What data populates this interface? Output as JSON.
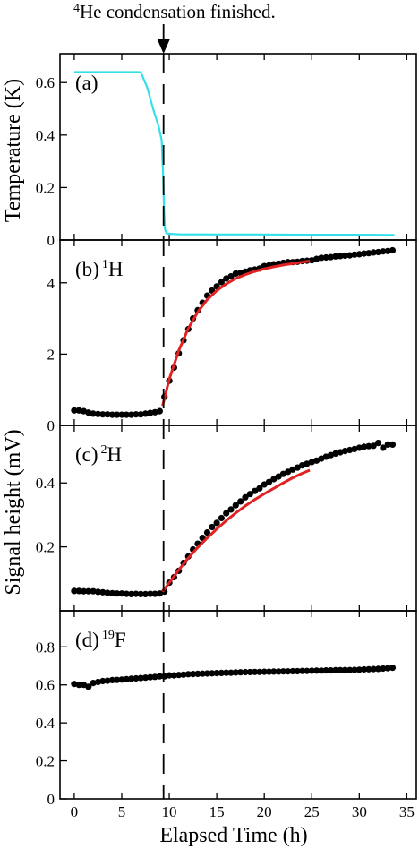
{
  "annotation": {
    "sup": "4",
    "text": "He condensation finished."
  },
  "xaxis": {
    "label": "Elapsed Time (h)",
    "ticks": [
      0,
      5,
      10,
      15,
      20,
      25,
      30,
      35
    ],
    "range": [
      -1.5,
      36
    ]
  },
  "ylabels": {
    "temperature": "Temperature (K)",
    "signal": "Signal height (mV)"
  },
  "colors": {
    "fit": "#e02222",
    "temperature": "#34e0e8",
    "points": "#000000"
  },
  "dashed_line_x": 9.4,
  "chart_data": [
    {
      "type": "line",
      "panel_label": "(a)",
      "ylabel": "Temperature (K)",
      "ylim": [
        0,
        0.71
      ],
      "yticks": [
        0,
        0.2,
        0.4,
        0.6
      ],
      "series": [
        {
          "x": [
            0,
            7.0,
            7.7,
            8.3,
            8.9,
            9.2,
            9.35,
            9.45,
            9.55,
            9.7,
            10,
            11,
            15,
            20,
            25,
            30,
            33.7
          ],
          "y": [
            0.64,
            0.64,
            0.58,
            0.5,
            0.43,
            0.38,
            0.25,
            0.12,
            0.04,
            0.026,
            0.024,
            0.022,
            0.021,
            0.021,
            0.02,
            0.02,
            0.019
          ]
        }
      ]
    },
    {
      "type": "scatter",
      "panel_label": "(b)",
      "label_sup": "1",
      "label_elem": "H",
      "ylim": [
        0,
        5.2
      ],
      "yticks": [
        0,
        2,
        4
      ],
      "series": [
        {
          "x": [
            0,
            0.5,
            1,
            1.5,
            2,
            2.5,
            3,
            3.5,
            4,
            4.5,
            5,
            5.5,
            6,
            6.5,
            7,
            7.5,
            8,
            8.5,
            9,
            9.5,
            10,
            10.5,
            11,
            11.5,
            12,
            12.5,
            13,
            13.5,
            14,
            14.5,
            15,
            15.5,
            16,
            16.5,
            17,
            17.5,
            18,
            18.5,
            19,
            19.5,
            20,
            20.5,
            21,
            21.5,
            22,
            22.5,
            23,
            23.5,
            24,
            24.5,
            25,
            25.5,
            26,
            26.5,
            27,
            27.5,
            28,
            28.5,
            29,
            29.5,
            30,
            30.5,
            31,
            31.5,
            32,
            32.5,
            33,
            33.5
          ],
          "y": [
            0.42,
            0.42,
            0.4,
            0.36,
            0.33,
            0.32,
            0.31,
            0.31,
            0.3,
            0.3,
            0.3,
            0.3,
            0.3,
            0.31,
            0.31,
            0.33,
            0.35,
            0.37,
            0.4,
            0.8,
            1.25,
            1.62,
            2.02,
            2.39,
            2.7,
            3.0,
            3.23,
            3.44,
            3.64,
            3.78,
            3.9,
            4.02,
            4.12,
            4.18,
            4.26,
            4.28,
            4.31,
            4.35,
            4.37,
            4.4,
            4.47,
            4.49,
            4.52,
            4.54,
            4.56,
            4.58,
            4.58,
            4.59,
            4.61,
            4.62,
            4.63,
            4.67,
            4.7,
            4.71,
            4.72,
            4.74,
            4.75,
            4.76,
            4.77,
            4.79,
            4.8,
            4.82,
            4.83,
            4.85,
            4.86,
            4.88,
            4.89,
            4.91
          ]
        },
        {
          "x": [
            9.3,
            10,
            11,
            12,
            13,
            14,
            15,
            16,
            17,
            18,
            19,
            20,
            21,
            22,
            23,
            24,
            24.8
          ],
          "y": [
            0.55,
            1.3,
            2.1,
            2.72,
            3.18,
            3.53,
            3.78,
            3.97,
            4.12,
            4.23,
            4.32,
            4.39,
            4.45,
            4.5,
            4.54,
            4.58,
            4.61
          ]
        }
      ]
    },
    {
      "type": "scatter",
      "panel_label": "(c)",
      "label_sup": "2",
      "label_elem": "H",
      "ylim": [
        0,
        0.58
      ],
      "yticks": [
        0.2,
        0.4
      ],
      "series": [
        {
          "x": [
            0,
            0.5,
            1,
            1.5,
            2,
            2.5,
            3,
            3.5,
            4,
            4.5,
            5,
            5.5,
            6,
            6.5,
            7,
            7.5,
            8,
            8.5,
            9,
            9.5,
            10,
            10.5,
            11,
            11.5,
            12,
            12.5,
            13,
            13.5,
            14,
            14.5,
            15,
            15.5,
            16,
            16.5,
            17,
            17.5,
            18,
            18.5,
            19,
            19.5,
            20,
            20.5,
            21,
            21.5,
            22,
            22.5,
            23,
            23.5,
            24,
            24.5,
            25,
            25.5,
            26,
            26.5,
            27,
            27.5,
            28,
            28.5,
            29,
            29.5,
            30,
            30.5,
            31,
            31.5,
            32,
            32.5,
            33,
            33.5
          ],
          "y": [
            0.062,
            0.062,
            0.061,
            0.061,
            0.061,
            0.059,
            0.058,
            0.056,
            0.055,
            0.054,
            0.054,
            0.053,
            0.052,
            0.053,
            0.052,
            0.052,
            0.053,
            0.053,
            0.054,
            0.06,
            0.088,
            0.105,
            0.125,
            0.15,
            0.17,
            0.192,
            0.21,
            0.228,
            0.245,
            0.262,
            0.275,
            0.29,
            0.305,
            0.317,
            0.33,
            0.342,
            0.355,
            0.365,
            0.375,
            0.383,
            0.395,
            0.403,
            0.412,
            0.42,
            0.428,
            0.435,
            0.442,
            0.448,
            0.455,
            0.46,
            0.465,
            0.47,
            0.476,
            0.482,
            0.487,
            0.492,
            0.496,
            0.5,
            0.503,
            0.506,
            0.51,
            0.513,
            0.515,
            0.516,
            0.525,
            0.51,
            0.52,
            0.52
          ]
        },
        {
          "x": [
            9.3,
            10,
            11,
            12,
            13,
            14,
            15,
            16,
            17,
            18,
            19,
            20,
            21,
            22,
            23,
            24,
            24.8
          ],
          "y": [
            0.06,
            0.088,
            0.128,
            0.165,
            0.198,
            0.228,
            0.256,
            0.282,
            0.306,
            0.328,
            0.348,
            0.366,
            0.383,
            0.4,
            0.416,
            0.43,
            0.44
          ]
        }
      ]
    },
    {
      "type": "scatter",
      "panel_label": "(d)",
      "label_sup": "19",
      "label_elem": "F",
      "ylim": [
        0,
        0.99
      ],
      "yticks": [
        0,
        0.2,
        0.4,
        0.6,
        0.8
      ],
      "series": [
        {
          "x": [
            0,
            0.5,
            1,
            1.5,
            2,
            2.5,
            3,
            3.5,
            4,
            4.5,
            5,
            5.5,
            6,
            6.5,
            7,
            7.5,
            8,
            8.5,
            9,
            9.5,
            10,
            10.5,
            11,
            11.5,
            12,
            12.5,
            13,
            13.5,
            14,
            14.5,
            15,
            15.5,
            16,
            16.5,
            17,
            17.5,
            18,
            18.5,
            19,
            19.5,
            20,
            20.5,
            21,
            21.5,
            22,
            22.5,
            23,
            23.5,
            24,
            24.5,
            25,
            25.5,
            26,
            26.5,
            27,
            27.5,
            28,
            28.5,
            29,
            29.5,
            30,
            30.5,
            31,
            31.5,
            32,
            32.5,
            33,
            33.5
          ],
          "y": [
            0.605,
            0.6,
            0.6,
            0.59,
            0.61,
            0.615,
            0.62,
            0.622,
            0.625,
            0.626,
            0.628,
            0.63,
            0.632,
            0.634,
            0.636,
            0.638,
            0.64,
            0.642,
            0.645,
            0.645,
            0.65,
            0.65,
            0.652,
            0.654,
            0.656,
            0.657,
            0.658,
            0.659,
            0.66,
            0.661,
            0.662,
            0.663,
            0.664,
            0.664,
            0.665,
            0.666,
            0.667,
            0.667,
            0.668,
            0.668,
            0.669,
            0.669,
            0.67,
            0.67,
            0.671,
            0.671,
            0.672,
            0.672,
            0.673,
            0.673,
            0.674,
            0.675,
            0.675,
            0.676,
            0.676,
            0.677,
            0.677,
            0.678,
            0.678,
            0.679,
            0.68,
            0.681,
            0.682,
            0.683,
            0.684,
            0.686,
            0.688,
            0.69
          ]
        }
      ]
    }
  ]
}
